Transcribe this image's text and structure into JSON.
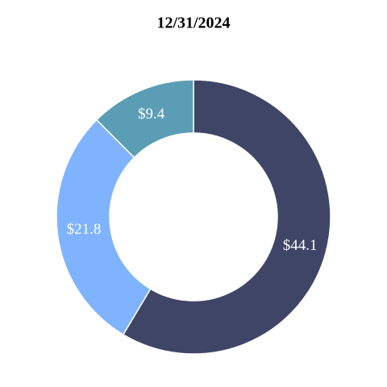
{
  "chart_data": {
    "type": "donut",
    "title": "12/31/2024",
    "values": [
      44.1,
      21.8,
      9.4
    ],
    "value_labels": [
      "$44.1",
      "$21.8",
      "$9.4"
    ],
    "colors": [
      "#3f4566",
      "#7fb3ff",
      "#5a9db5"
    ]
  }
}
